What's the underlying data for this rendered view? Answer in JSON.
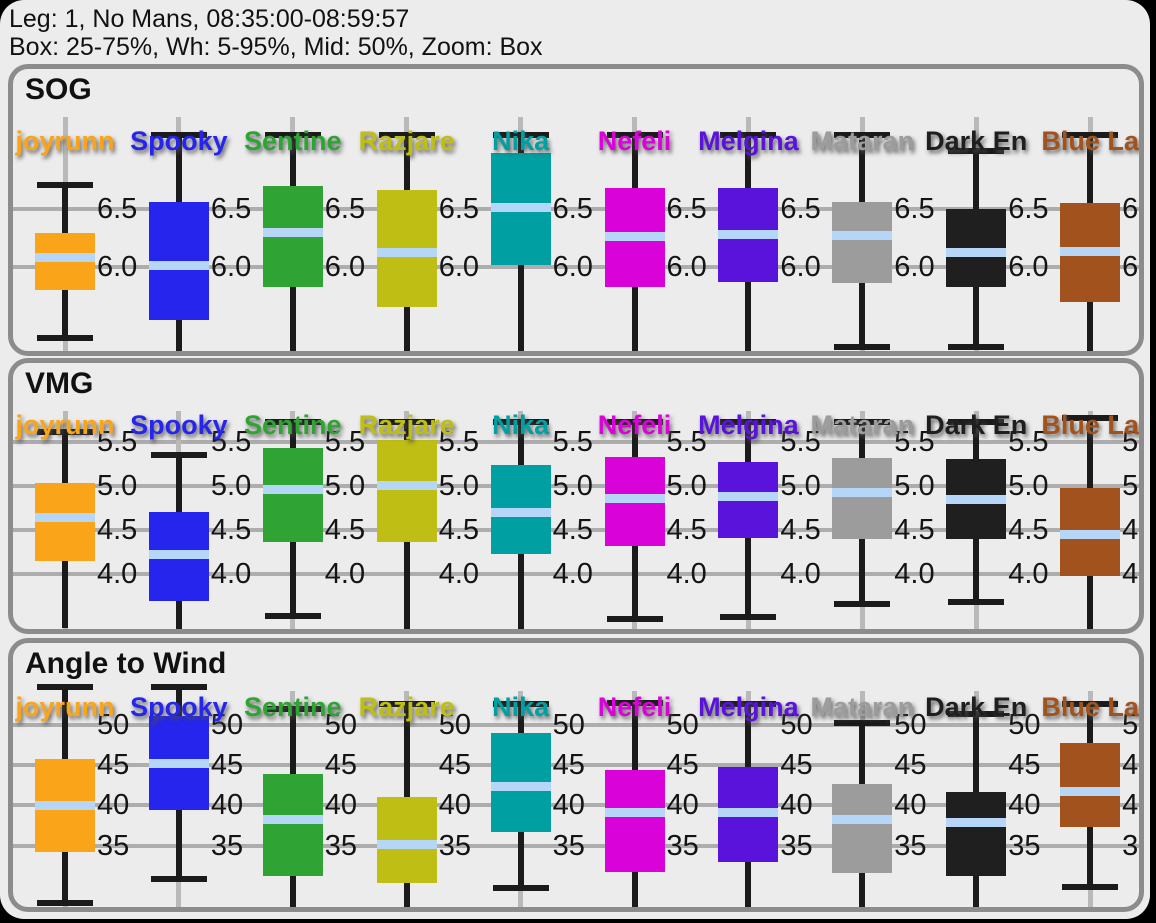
{
  "header": {
    "line1": "Leg: 1, No Mans, 08:35:00-08:59:57",
    "line2": "Box: 25-75%, Wh: 5-95%, Mid: 50%, Zoom: Box"
  },
  "boats": [
    {
      "name": "joyrunn",
      "color": "#FAA41A"
    },
    {
      "name": "Spooky",
      "color": "#2525EE"
    },
    {
      "name": "Sentine",
      "color": "#2FA434"
    },
    {
      "name": "Razjare",
      "color": "#BEBE14"
    },
    {
      "name": "Nika",
      "color": "#00A0A2"
    },
    {
      "name": "Nefeli",
      "color": "#D903D9"
    },
    {
      "name": "Melgina",
      "color": "#5913DB"
    },
    {
      "name": "Mataran",
      "color": "#9C9C9C"
    },
    {
      "name": "Dark En",
      "color": "#1F1F1F"
    },
    {
      "name": "Blue La",
      "color": "#A2531D"
    }
  ],
  "median_color": "#B5D6F6",
  "chart_data": {
    "type": "boxplot",
    "note": "values per boat are [whisker_low(5%), q1(25%), median(50%), q3(75%), whisker_high(95%)]",
    "panels": [
      {
        "title": "SOG",
        "tick_values": [
          6.5,
          6.0
        ],
        "tick_labels": [
          "6.5",
          "6.0"
        ],
        "values": [
          [
            5.38,
            5.8,
            6.08,
            6.29,
            6.7
          ],
          [
            5.05,
            5.54,
            6.01,
            6.56,
            7.13
          ],
          [
            5.05,
            5.82,
            6.29,
            6.69,
            7.13
          ],
          [
            5.05,
            5.65,
            6.12,
            6.66,
            7.13
          ],
          [
            5.0,
            6.01,
            6.51,
            6.98,
            7.13
          ],
          [
            5.1,
            5.82,
            6.26,
            6.68,
            7.13
          ],
          [
            5.1,
            5.87,
            6.28,
            6.68,
            7.13
          ],
          [
            5.31,
            5.86,
            6.27,
            6.56,
            7.13
          ],
          [
            5.31,
            5.82,
            6.12,
            6.5,
            7.0
          ],
          [
            5.05,
            5.69,
            6.13,
            6.55,
            7.13
          ]
        ]
      },
      {
        "title": "VMG",
        "tick_values": [
          5.5,
          5.0,
          4.5,
          4.0
        ],
        "tick_labels": [
          "5.5",
          "5.0",
          "4.5",
          "4.0"
        ],
        "values": [
          [
            3.4,
            4.15,
            4.64,
            5.03,
            5.61
          ],
          [
            3.2,
            3.7,
            4.22,
            4.7,
            5.35
          ],
          [
            3.53,
            4.37,
            4.96,
            5.43,
            5.72
          ],
          [
            3.3,
            4.36,
            5.0,
            5.52,
            5.72
          ],
          [
            3.38,
            4.23,
            4.7,
            5.23,
            5.72
          ],
          [
            3.5,
            4.32,
            4.86,
            5.32,
            5.72
          ],
          [
            3.52,
            4.41,
            4.88,
            5.27,
            5.72
          ],
          [
            3.67,
            4.4,
            4.92,
            5.31,
            5.72
          ],
          [
            3.69,
            4.4,
            4.84,
            5.3,
            5.72
          ],
          [
            3.2,
            3.98,
            4.45,
            4.97,
            5.77
          ]
        ]
      },
      {
        "title": "Angle to Wind",
        "tick_values": [
          50,
          45,
          40,
          35
        ],
        "tick_labels": [
          "50",
          "45",
          "40",
          "35"
        ],
        "values": [
          [
            27.9,
            34.2,
            40.0,
            45.7,
            54.6
          ],
          [
            30.9,
            39.4,
            45.2,
            51.1,
            54.6
          ],
          [
            26.0,
            31.2,
            38.2,
            43.9,
            51.9
          ],
          [
            26.0,
            30.4,
            35.2,
            41.0,
            52.5
          ],
          [
            29.8,
            36.7,
            42.3,
            48.9,
            52.5
          ],
          [
            26.0,
            31.8,
            39.1,
            44.4,
            52.7
          ],
          [
            26.0,
            33.0,
            39.1,
            44.7,
            52.5
          ],
          [
            26.0,
            31.6,
            38.3,
            42.6,
            50.2
          ],
          [
            26.0,
            31.2,
            37.9,
            41.7,
            51.3
          ],
          [
            29.9,
            37.3,
            41.7,
            47.7,
            52.5
          ]
        ]
      }
    ]
  }
}
